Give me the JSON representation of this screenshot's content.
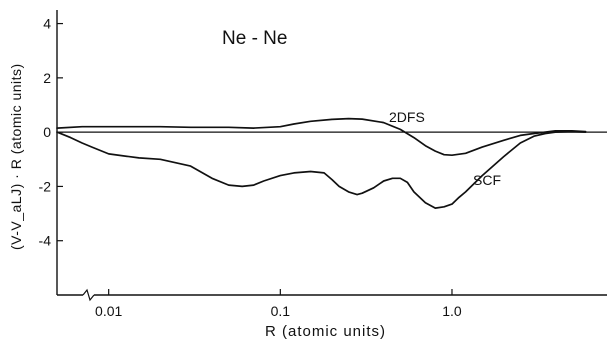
{
  "chart_data": {
    "type": "line",
    "title": "Ne - Ne",
    "xlabel": "R (atomic units)",
    "ylabel": "(V-V_aLJ) · R  (atomic units)",
    "x_scale": "log",
    "xlim": [
      0.005,
      8
    ],
    "ylim": [
      -6,
      4.5
    ],
    "x_ticks": [
      0.01,
      0.1,
      1.0
    ],
    "x_tick_labels": [
      "0.01",
      "0.1",
      "1.0"
    ],
    "y_ticks": [
      4,
      2,
      0,
      -2,
      -4
    ],
    "y_tick_labels": [
      "4",
      "2",
      "0",
      "-2",
      "-4"
    ],
    "grid": false,
    "legend": "none",
    "series": [
      {
        "name": "2DFS",
        "x": [
          0.005,
          0.007,
          0.01,
          0.015,
          0.02,
          0.03,
          0.05,
          0.07,
          0.1,
          0.12,
          0.15,
          0.2,
          0.25,
          0.3,
          0.4,
          0.5,
          0.6,
          0.7,
          0.8,
          0.9,
          1.0,
          1.2,
          1.5,
          2.0,
          2.5,
          3.0,
          3.5,
          4.0,
          5.0,
          6.0
        ],
        "y": [
          0.15,
          0.2,
          0.2,
          0.2,
          0.2,
          0.18,
          0.18,
          0.15,
          0.2,
          0.3,
          0.4,
          0.47,
          0.5,
          0.48,
          0.35,
          0.1,
          -0.2,
          -0.5,
          -0.7,
          -0.83,
          -0.85,
          -0.78,
          -0.55,
          -0.3,
          -0.12,
          -0.05,
          0.0,
          0.05,
          0.05,
          0.02
        ]
      },
      {
        "name": "SCF",
        "x": [
          0.005,
          0.006,
          0.007,
          0.008,
          0.01,
          0.015,
          0.02,
          0.03,
          0.04,
          0.05,
          0.06,
          0.07,
          0.08,
          0.1,
          0.12,
          0.15,
          0.18,
          0.2,
          0.22,
          0.25,
          0.28,
          0.3,
          0.35,
          0.4,
          0.45,
          0.5,
          0.55,
          0.6,
          0.7,
          0.8,
          0.9,
          1.0,
          1.1,
          1.2,
          1.5,
          2.0,
          2.5,
          3.0,
          3.5,
          4.0,
          5.0,
          6.0
        ],
        "y": [
          0.0,
          -0.2,
          -0.4,
          -0.55,
          -0.8,
          -0.95,
          -1.0,
          -1.25,
          -1.7,
          -1.95,
          -2.0,
          -1.95,
          -1.8,
          -1.6,
          -1.5,
          -1.45,
          -1.5,
          -1.75,
          -2.0,
          -2.2,
          -2.3,
          -2.25,
          -2.05,
          -1.8,
          -1.7,
          -1.7,
          -1.85,
          -2.2,
          -2.6,
          -2.8,
          -2.75,
          -2.65,
          -2.4,
          -2.2,
          -1.6,
          -0.9,
          -0.4,
          -0.15,
          -0.05,
          0.0,
          0.02,
          0.0
        ]
      }
    ]
  }
}
